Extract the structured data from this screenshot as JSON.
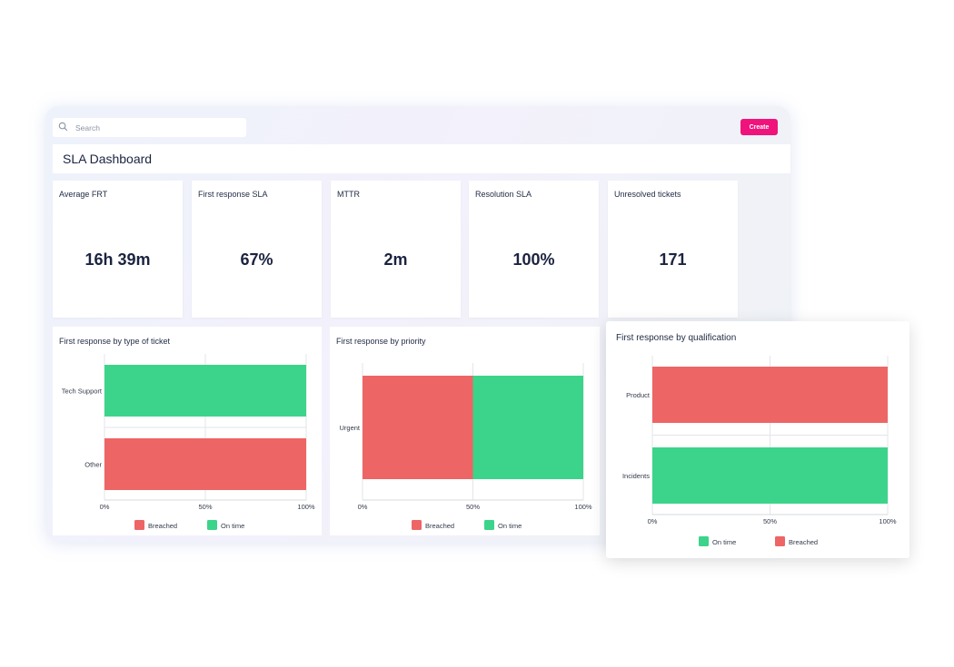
{
  "colors": {
    "breached": "#ee6565",
    "on_time": "#3bd48a",
    "accent": "#f0137c"
  },
  "search": {
    "placeholder": "Search",
    "icon": "search-icon"
  },
  "header": {
    "create_label": "Create",
    "title": "SLA Dashboard"
  },
  "kpis": [
    {
      "label": "Average FRT",
      "value": "16h 39m"
    },
    {
      "label": "First response SLA",
      "value": "67%"
    },
    {
      "label": "MTTR",
      "value": "2m"
    },
    {
      "label": "Resolution SLA",
      "value": "100%"
    },
    {
      "label": "Unresolved tickets",
      "value": "171"
    }
  ],
  "chart_data": [
    {
      "type": "bar",
      "orientation": "horizontal",
      "stacked": true,
      "title": "First response by type of ticket",
      "categories": [
        "Tech Support",
        "Other"
      ],
      "series": [
        {
          "name": "Breached",
          "values": [
            0,
            100
          ]
        },
        {
          "name": "On time",
          "values": [
            100,
            0
          ]
        }
      ],
      "xticks": [
        "0%",
        "50%",
        "100%"
      ],
      "xlim": [
        0,
        100
      ],
      "grid": true,
      "legend": "bottom"
    },
    {
      "type": "bar",
      "orientation": "horizontal",
      "stacked": true,
      "title": "First response by priority",
      "categories": [
        "Urgent"
      ],
      "series": [
        {
          "name": "Breached",
          "values": [
            50
          ]
        },
        {
          "name": "On time",
          "values": [
            50
          ]
        }
      ],
      "xticks": [
        "0%",
        "50%",
        "100%"
      ],
      "xlim": [
        0,
        100
      ],
      "grid": true,
      "legend": "bottom"
    },
    {
      "type": "bar",
      "orientation": "horizontal",
      "stacked": true,
      "title": "First response by qualification",
      "categories": [
        "Product",
        "Incidents"
      ],
      "series": [
        {
          "name": "On time",
          "values": [
            0,
            100
          ]
        },
        {
          "name": "Breached",
          "values": [
            100,
            0
          ]
        }
      ],
      "xticks": [
        "0%",
        "50%",
        "100%"
      ],
      "xlim": [
        0,
        100
      ],
      "grid": true,
      "legend": "bottom"
    }
  ]
}
